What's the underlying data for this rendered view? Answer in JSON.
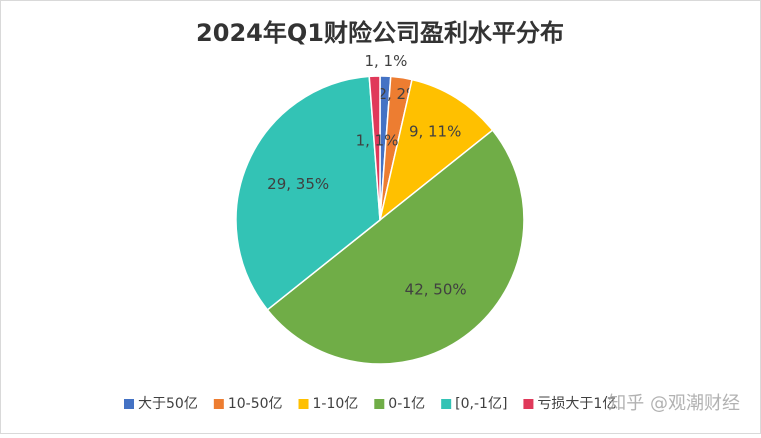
{
  "chart_data": {
    "type": "pie",
    "title": "2024年Q1财险公司盈利水平分布",
    "categories": [
      "大于50亿",
      "10-50亿",
      "1-10亿",
      "0-1亿",
      "[0,-1亿]",
      "亏损大于1亿"
    ],
    "values": [
      1,
      2,
      9,
      42,
      29,
      1
    ],
    "value_labels": [
      "1, 1%",
      "2, 2%",
      "9, 11%",
      "42, 50%",
      "29, 35%",
      "1, 1%"
    ],
    "colors": [
      "#4472c4",
      "#ed7d31",
      "#ffc000",
      "#70ad47",
      "#33c3b5",
      "#e0395a"
    ],
    "legend": "bottom"
  },
  "watermark": "知乎 @观潮财经"
}
